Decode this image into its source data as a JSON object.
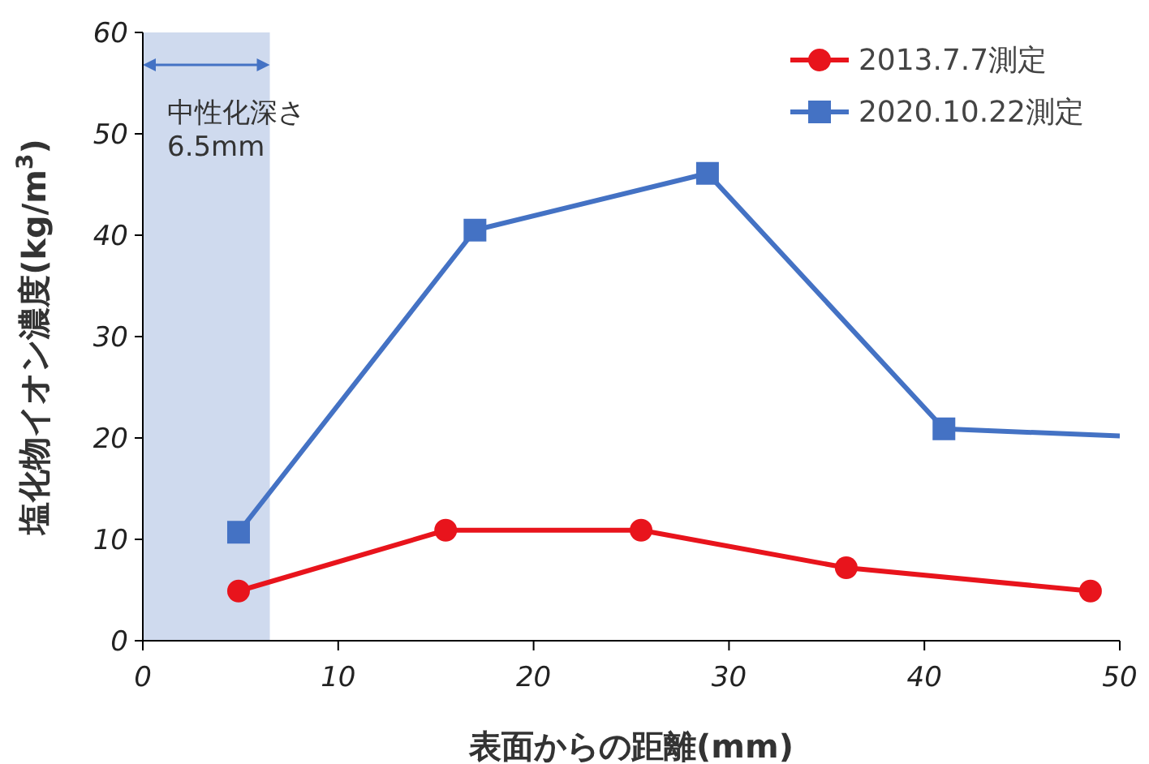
{
  "chart_data": {
    "type": "line",
    "xlabel": "表面からの距離(mm)",
    "ylabel": "塩化物イオン濃度(kg/m$^{3}$)",
    "series": [
      {
        "name": "2013.7.7測定",
        "color": "#e8141c",
        "marker": "circle",
        "x": [
          4.9,
          15.5,
          25.5,
          36.0,
          48.5
        ],
        "values": [
          4.9,
          10.9,
          10.9,
          7.2,
          4.9
        ]
      },
      {
        "name": "2020.10.22測定",
        "color": "#4472c4",
        "marker": "square",
        "x": [
          4.9,
          17.0,
          28.9,
          41.0,
          50
        ],
        "values": [
          10.7,
          40.5,
          46.1,
          20.9,
          20.2
        ]
      }
    ],
    "xlim": [
      0,
      50
    ],
    "xticks": [
      0,
      10,
      20,
      30,
      40,
      50
    ],
    "ylim": [
      0,
      60
    ],
    "yticks": [
      0,
      10,
      20,
      30,
      40,
      50,
      60
    ],
    "bands": [
      {
        "axis": "x",
        "from": 0,
        "to": 6.5,
        "label": "中性化深さ\n6.5mm",
        "color": "#cfdaee"
      }
    ],
    "grid": false,
    "legend": "top right"
  }
}
